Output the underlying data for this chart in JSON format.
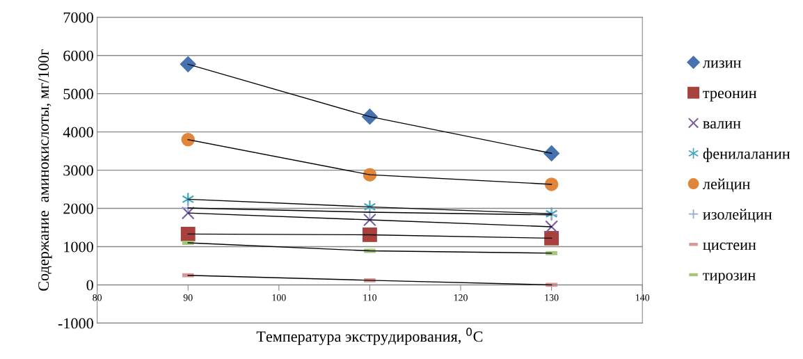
{
  "chart_data": {
    "type": "scatter",
    "xlabel": "Температура экструдирования, $^{0}$C",
    "ylabel": "Содержание  аминокислоты, мг/100г",
    "x": [
      90,
      110,
      130
    ],
    "xlim": [
      80,
      140
    ],
    "xticks": [
      80,
      90,
      100,
      110,
      120,
      130,
      140
    ],
    "ylim": [
      -1000,
      7000
    ],
    "yticks": [
      -1000,
      0,
      1000,
      2000,
      3000,
      4000,
      5000,
      6000,
      7000
    ],
    "grid": "y",
    "legend": "right",
    "series": [
      {
        "name": "лизин",
        "color": "#4672b0",
        "marker": "diamond",
        "values": [
          5770,
          4400,
          3440
        ]
      },
      {
        "name": "треонин",
        "color": "#a8403d",
        "marker": "square",
        "values": [
          1330,
          1310,
          1220
        ]
      },
      {
        "name": "валин",
        "color": "#7a5a9e",
        "marker": "cross",
        "values": [
          1880,
          1700,
          1520
        ]
      },
      {
        "name": "фенилаланин",
        "color": "#3fa7c0",
        "marker": "cross",
        "values": [
          2240,
          2040,
          1860
        ]
      },
      {
        "name": "лейцин",
        "color": "#e0863a",
        "marker": "circle",
        "values": [
          3800,
          2880,
          2630
        ]
      },
      {
        "name": "изолейцин",
        "color": "#8fa8d8",
        "marker": "plus",
        "values": [
          2010,
          1900,
          1830
        ]
      },
      {
        "name": "цистеин",
        "color": "#d99694",
        "values": [
          250,
          120,
          0
        ]
      },
      {
        "name": "тирозин",
        "color": "#a6c77a",
        "values": [
          1100,
          890,
          830
        ]
      },
      {
        "type": "line",
        "color": "#000000",
        "values": [
          5770,
          4400,
          3440
        ]
      },
      {
        "type": "line",
        "color": "#000000",
        "values": [
          1330,
          1310,
          1220
        ]
      },
      {
        "type": "line",
        "color": "#000000",
        "values": [
          1880,
          1700,
          1520
        ]
      },
      {
        "type": "line",
        "color": "#000000",
        "values": [
          2240,
          2040,
          1860
        ]
      },
      {
        "type": "line",
        "color": "#000000",
        "values": [
          3800,
          2880,
          2630
        ]
      },
      {
        "type": "line",
        "color": "#000000",
        "values": [
          2010,
          1900,
          1830
        ]
      },
      {
        "type": "line",
        "color": "#000000",
        "values": [
          250,
          120,
          0
        ]
      },
      {
        "type": "line",
        "color": "#000000",
        "values": [
          1100,
          890,
          830
        ]
      }
    ]
  }
}
